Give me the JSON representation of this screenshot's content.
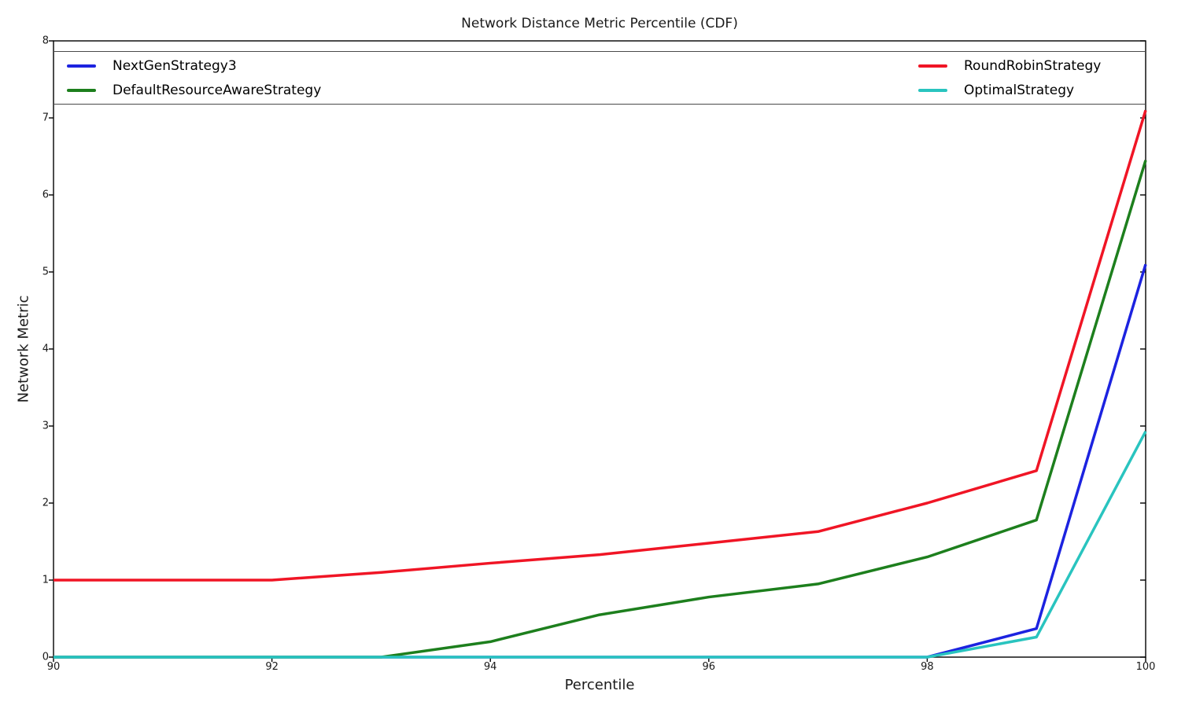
{
  "chart_data": {
    "type": "line",
    "title": "Network Distance Metric Percentile (CDF)",
    "xlabel": "Percentile",
    "ylabel": "Network Metric",
    "xlim": [
      90,
      100
    ],
    "ylim": [
      0,
      8
    ],
    "xticks": [
      90,
      92,
      94,
      96,
      98,
      100
    ],
    "yticks": [
      0,
      1,
      2,
      3,
      4,
      5,
      6,
      7,
      8
    ],
    "grid": false,
    "legend_position": "top-full-width-two-columns",
    "x": [
      90,
      91,
      92,
      93,
      94,
      95,
      96,
      97,
      98,
      99,
      100
    ],
    "series": [
      {
        "name": "NextGenStrategy3",
        "color": "#1c23e0",
        "values": [
          0,
          0,
          0,
          0,
          0,
          0,
          0,
          0,
          0,
          0.37,
          5.1
        ]
      },
      {
        "name": "DefaultResourceAwareStrategy",
        "color": "#1d7f1d",
        "values": [
          0,
          0,
          0,
          0,
          0.2,
          0.55,
          0.78,
          0.95,
          1.3,
          1.78,
          6.45
        ]
      },
      {
        "name": "RoundRobinStrategy",
        "color": "#f01525",
        "values": [
          1.0,
          1.0,
          1.0,
          1.1,
          1.22,
          1.33,
          1.48,
          1.63,
          2.0,
          2.42,
          7.1
        ]
      },
      {
        "name": "OptimalStrategy",
        "color": "#29c4bf",
        "values": [
          0,
          0,
          0,
          0,
          0,
          0,
          0,
          0,
          0,
          0.26,
          2.93
        ]
      }
    ]
  }
}
